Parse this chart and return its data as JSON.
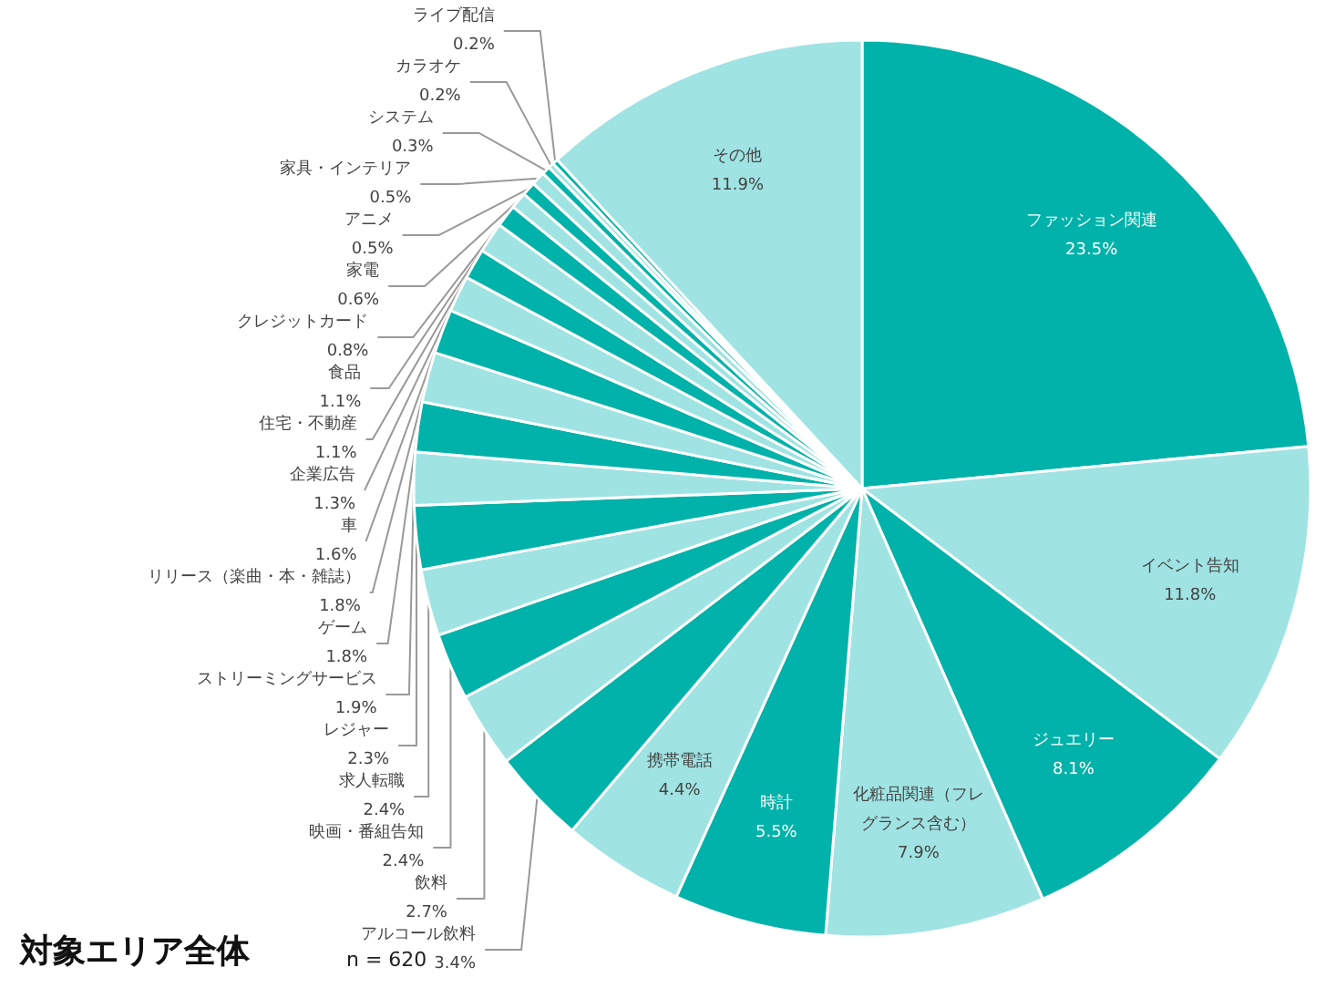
{
  "chart_data": {
    "type": "pie",
    "title": "対象エリア全体",
    "annotations": [
      "n = 620"
    ],
    "categories": [
      "ファッション関連",
      "イベント告知",
      "ジュエリー",
      "化粧品関連（フレグランス含む）",
      "時計",
      "携帯電話",
      "アルコール飲料",
      "飲料",
      "映画・番組告知",
      "求人転職",
      "レジャー",
      "ストリーミングサービス",
      "ゲーム",
      "リリース（楽曲・本・雑誌）",
      "車",
      "企業広告",
      "住宅・不動産",
      "食品",
      "クレジットカード",
      "家電",
      "アニメ",
      "家具・インテリア",
      "システム",
      "カラオケ",
      "ライブ配信",
      "その他"
    ],
    "values": [
      23.5,
      11.8,
      8.1,
      7.9,
      5.5,
      4.4,
      3.4,
      2.7,
      2.4,
      2.4,
      2.3,
      1.9,
      1.8,
      1.8,
      1.6,
      1.3,
      1.1,
      1.1,
      0.8,
      0.6,
      0.5,
      0.5,
      0.3,
      0.2,
      0.2,
      11.9
    ],
    "value_labels": [
      "23.5%",
      "11.8%",
      "8.1%",
      "7.9%",
      "5.5%",
      "4.4%",
      "3.4%",
      "2.7%",
      "2.4%",
      "2.4%",
      "2.3%",
      "1.9%",
      "1.8%",
      "1.8%",
      "1.6%",
      "1.3%",
      "1.1%",
      "1.1%",
      "0.8%",
      "0.6%",
      "0.5%",
      "0.5%",
      "0.3%",
      "0.2%",
      "0.2%",
      "11.9%"
    ],
    "colors": [
      "#00b2a9",
      "#a0e3e3",
      "#00b2a9",
      "#a0e3e3",
      "#00b2a9",
      "#a0e3e3",
      "#00b2a9",
      "#a0e3e3",
      "#00b2a9",
      "#a0e3e3",
      "#00b2a9",
      "#a0e3e3",
      "#00b2a9",
      "#a0e3e3",
      "#00b2a9",
      "#a0e3e3",
      "#00b2a9",
      "#a0e3e3",
      "#00b2a9",
      "#a0e3e3",
      "#00b2a9",
      "#a0e3e3",
      "#00b2a9",
      "#a0e3e3",
      "#00b2a9",
      "#a0e3e3"
    ],
    "legend": false
  }
}
